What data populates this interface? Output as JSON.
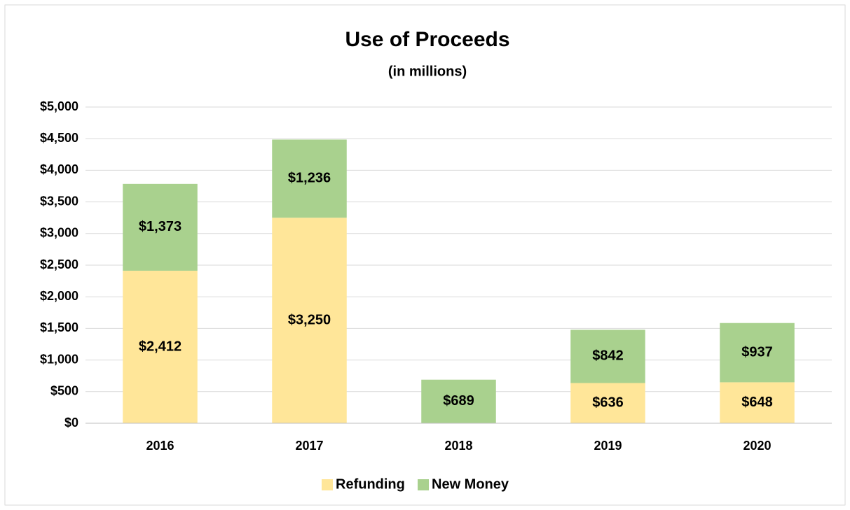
{
  "chart_data": {
    "type": "bar",
    "stacked": true,
    "title": "Use of Proceeds",
    "subtitle": "(in millions)",
    "categories": [
      "2016",
      "2017",
      "2018",
      "2019",
      "2020"
    ],
    "series": [
      {
        "name": "Refunding",
        "color": "#ffe699",
        "values": [
          2412,
          3250,
          null,
          636,
          648
        ],
        "value_labels": [
          "$2,412",
          "$3,250",
          null,
          "$636",
          "$648"
        ]
      },
      {
        "name": "New Money",
        "color": "#a9d18e",
        "values": [
          1373,
          1236,
          689,
          842,
          937
        ],
        "value_labels": [
          "$1,373",
          "$1,236",
          "$689",
          "$842",
          "$937"
        ]
      }
    ],
    "ylim": [
      0,
      5000
    ],
    "yticks": [
      {
        "value": 0,
        "label": "$0"
      },
      {
        "value": 500,
        "label": "$500"
      },
      {
        "value": 1000,
        "label": "$1,000"
      },
      {
        "value": 1500,
        "label": "$1,500"
      },
      {
        "value": 2000,
        "label": "$2,000"
      },
      {
        "value": 2500,
        "label": "$2,500"
      },
      {
        "value": 3000,
        "label": "$3,000"
      },
      {
        "value": 3500,
        "label": "$3,500"
      },
      {
        "value": 4000,
        "label": "$4,000"
      },
      {
        "value": 4500,
        "label": "$4,500"
      },
      {
        "value": 5000,
        "label": "$5,000"
      }
    ],
    "grid": true,
    "legend": "bottom"
  }
}
